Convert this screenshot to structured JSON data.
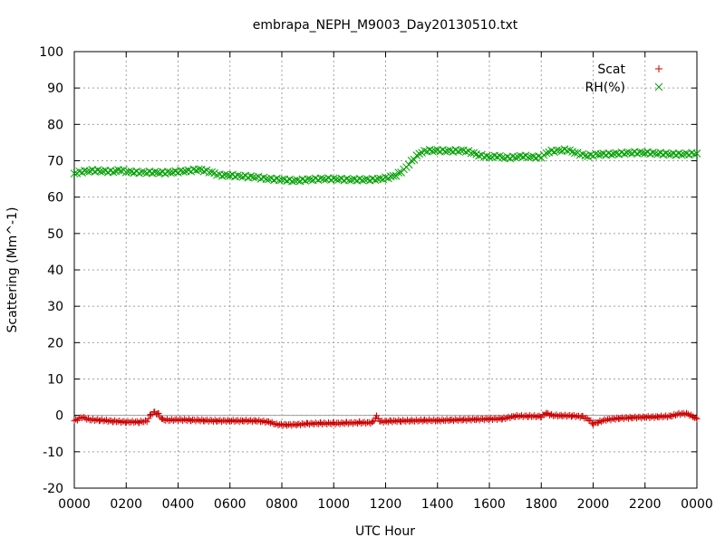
{
  "chart_data": {
    "type": "scatter",
    "title": "embrapa_NEPH_M9003_Day20130510.txt",
    "xlabel": "UTC Hour",
    "ylabel": "Scattering (Mm^-1)",
    "xlim": [
      0,
      24
    ],
    "ylim": [
      -20,
      100
    ],
    "x_ticks": [
      {
        "v": 0,
        "label": "0000"
      },
      {
        "v": 2,
        "label": "0200"
      },
      {
        "v": 4,
        "label": "0400"
      },
      {
        "v": 6,
        "label": "0600"
      },
      {
        "v": 8,
        "label": "0800"
      },
      {
        "v": 10,
        "label": "1000"
      },
      {
        "v": 12,
        "label": "1200"
      },
      {
        "v": 14,
        "label": "1400"
      },
      {
        "v": 16,
        "label": "1600"
      },
      {
        "v": 18,
        "label": "1800"
      },
      {
        "v": 20,
        "label": "2000"
      },
      {
        "v": 22,
        "label": "2200"
      },
      {
        "v": 24,
        "label": "0000"
      }
    ],
    "y_ticks": [
      -20,
      -10,
      0,
      10,
      20,
      30,
      40,
      50,
      60,
      70,
      80,
      90,
      100
    ],
    "grid": true,
    "zero_line": true,
    "legend_position": "top-right",
    "series": [
      {
        "name": "Scat",
        "marker": "plus",
        "color": "#cc0000",
        "points": [
          [
            0.0,
            -1.5
          ],
          [
            0.3,
            -0.5
          ],
          [
            0.6,
            -1.2
          ],
          [
            1.0,
            -1.3
          ],
          [
            1.5,
            -1.6
          ],
          [
            2.0,
            -1.8
          ],
          [
            2.5,
            -1.8
          ],
          [
            2.8,
            -1.6
          ],
          [
            2.95,
            0.3
          ],
          [
            3.1,
            0.8
          ],
          [
            3.25,
            0.3
          ],
          [
            3.4,
            -1.2
          ],
          [
            3.7,
            -1.3
          ],
          [
            4.0,
            -1.2
          ],
          [
            4.5,
            -1.3
          ],
          [
            5.0,
            -1.4
          ],
          [
            5.5,
            -1.5
          ],
          [
            6.0,
            -1.5
          ],
          [
            6.5,
            -1.5
          ],
          [
            7.0,
            -1.5
          ],
          [
            7.5,
            -1.8
          ],
          [
            7.8,
            -2.5
          ],
          [
            8.2,
            -2.6
          ],
          [
            8.6,
            -2.5
          ],
          [
            9.0,
            -2.3
          ],
          [
            9.5,
            -2.2
          ],
          [
            10.0,
            -2.2
          ],
          [
            10.5,
            -2.1
          ],
          [
            11.0,
            -2.0
          ],
          [
            11.5,
            -2.0
          ],
          [
            11.65,
            -0.3
          ],
          [
            11.8,
            -1.7
          ],
          [
            12.2,
            -1.6
          ],
          [
            12.6,
            -1.5
          ],
          [
            13.0,
            -1.5
          ],
          [
            13.5,
            -1.4
          ],
          [
            14.0,
            -1.4
          ],
          [
            14.5,
            -1.3
          ],
          [
            15.0,
            -1.2
          ],
          [
            15.5,
            -1.1
          ],
          [
            16.0,
            -1.0
          ],
          [
            16.5,
            -0.9
          ],
          [
            16.8,
            -0.5
          ],
          [
            17.0,
            -0.2
          ],
          [
            17.5,
            -0.2
          ],
          [
            18.0,
            -0.3
          ],
          [
            18.2,
            0.6
          ],
          [
            18.4,
            0.0
          ],
          [
            18.8,
            -0.1
          ],
          [
            19.2,
            -0.1
          ],
          [
            19.6,
            -0.4
          ],
          [
            19.85,
            -1.2
          ],
          [
            20.0,
            -2.3
          ],
          [
            20.2,
            -1.8
          ],
          [
            20.5,
            -1.2
          ],
          [
            21.0,
            -0.8
          ],
          [
            21.5,
            -0.6
          ],
          [
            22.0,
            -0.5
          ],
          [
            22.5,
            -0.4
          ],
          [
            23.0,
            -0.2
          ],
          [
            23.3,
            0.4
          ],
          [
            23.6,
            0.5
          ],
          [
            23.85,
            -0.3
          ],
          [
            24.0,
            -1.0
          ]
        ]
      },
      {
        "name": "RH(%)",
        "marker": "cross",
        "color": "#00a000",
        "points": [
          [
            0.0,
            66.5
          ],
          [
            0.3,
            67.0
          ],
          [
            0.7,
            67.3
          ],
          [
            1.0,
            67.2
          ],
          [
            1.5,
            67.0
          ],
          [
            1.8,
            67.5
          ],
          [
            2.0,
            67.0
          ],
          [
            2.5,
            66.8
          ],
          [
            3.0,
            66.8
          ],
          [
            3.5,
            66.7
          ],
          [
            4.0,
            67.0
          ],
          [
            4.5,
            67.3
          ],
          [
            4.8,
            67.6
          ],
          [
            5.0,
            67.3
          ],
          [
            5.3,
            66.8
          ],
          [
            5.6,
            66.0
          ],
          [
            6.0,
            66.0
          ],
          [
            6.5,
            65.7
          ],
          [
            7.0,
            65.5
          ],
          [
            7.5,
            65.0
          ],
          [
            8.0,
            64.8
          ],
          [
            8.5,
            64.5
          ],
          [
            9.0,
            64.8
          ],
          [
            9.5,
            65.0
          ],
          [
            10.0,
            65.0
          ],
          [
            10.5,
            64.8
          ],
          [
            11.0,
            64.8
          ],
          [
            11.5,
            64.8
          ],
          [
            12.0,
            65.2
          ],
          [
            12.4,
            66.0
          ],
          [
            12.7,
            67.5
          ],
          [
            13.0,
            69.8
          ],
          [
            13.3,
            72.0
          ],
          [
            13.6,
            72.8
          ],
          [
            14.0,
            72.8
          ],
          [
            14.5,
            72.7
          ],
          [
            15.0,
            72.8
          ],
          [
            15.3,
            72.3
          ],
          [
            15.6,
            71.5
          ],
          [
            16.0,
            71.0
          ],
          [
            16.3,
            71.3
          ],
          [
            16.6,
            70.8
          ],
          [
            17.0,
            71.0
          ],
          [
            17.3,
            71.3
          ],
          [
            17.6,
            71.0
          ],
          [
            18.0,
            71.0
          ],
          [
            18.3,
            72.5
          ],
          [
            18.7,
            72.8
          ],
          [
            19.0,
            73.0
          ],
          [
            19.4,
            72.0
          ],
          [
            19.8,
            71.3
          ],
          [
            20.2,
            71.8
          ],
          [
            20.6,
            71.8
          ],
          [
            21.0,
            72.0
          ],
          [
            21.5,
            72.2
          ],
          [
            22.0,
            72.2
          ],
          [
            22.5,
            72.0
          ],
          [
            23.0,
            71.8
          ],
          [
            23.5,
            71.8
          ],
          [
            24.0,
            72.0
          ]
        ]
      }
    ]
  }
}
